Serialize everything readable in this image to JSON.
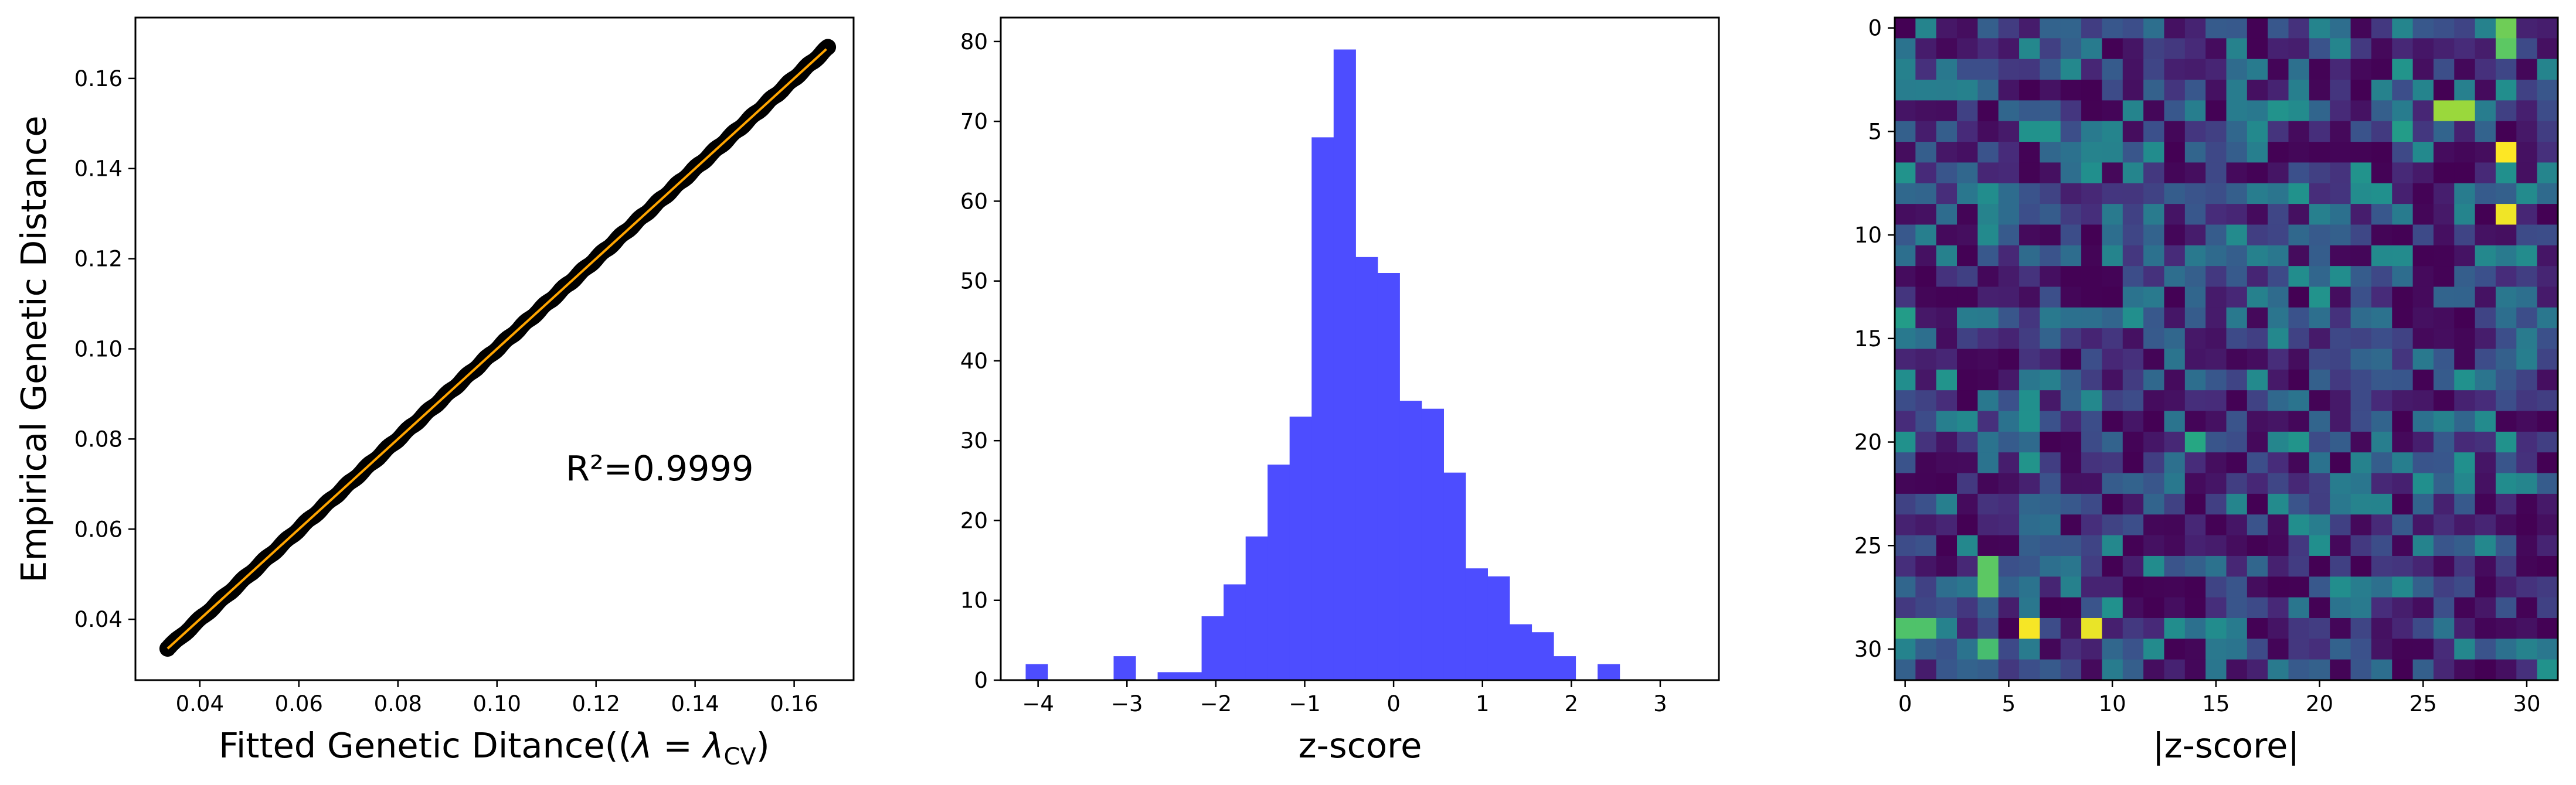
{
  "colors": {
    "scatter_points": "#000000",
    "fit_line": "#ffa500",
    "histogram_bars": "#4d4dff",
    "heatmap_colormap": "viridis"
  },
  "chart_data": [
    {
      "type": "scatter",
      "xlabel": "Fitted Genetic Ditance((λ = λ_CV)",
      "xlabel_parts": {
        "main": "Fitted Genetic Ditance((",
        "lambda1": "λ",
        "eq": " = ",
        "lambda2": "λ",
        "sub": "CV",
        "close": ")"
      },
      "ylabel": "Empirical Genetic Distance",
      "annotation": "R²=0.9999",
      "xlim": [
        0.027,
        0.172
      ],
      "ylim": [
        0.0265,
        0.1735
      ],
      "xticks": [
        "0.04",
        "0.06",
        "0.08",
        "0.10",
        "0.12",
        "0.14",
        "0.16"
      ],
      "yticks": [
        "0.04",
        "0.06",
        "0.08",
        "0.10",
        "0.12",
        "0.14",
        "0.16"
      ],
      "fit_line": {
        "x": [
          0.0335,
          0.1665
        ],
        "y": [
          0.0335,
          0.1665
        ]
      },
      "points_x_range": [
        0.0335,
        0.1668
      ],
      "point_count": 496
    },
    {
      "type": "bar",
      "subtype": "histogram",
      "xlabel": "z-score",
      "ylabel": "",
      "xlim": [
        -4.42,
        3.66
      ],
      "ylim": [
        0,
        83
      ],
      "xticks": [
        "-4",
        "-3",
        "-2",
        "-1",
        "0",
        "1",
        "2",
        "3"
      ],
      "yticks": [
        "0",
        "10",
        "20",
        "30",
        "40",
        "50",
        "60",
        "70",
        "80"
      ],
      "bins_start": -4.14,
      "bin_width": 0.2475,
      "counts": [
        2,
        0,
        0,
        0,
        3,
        0,
        1,
        1,
        8,
        12,
        18,
        27,
        33,
        68,
        79,
        53,
        51,
        35,
        34,
        26,
        14,
        13,
        7,
        6,
        3,
        0,
        2
      ]
    },
    {
      "type": "heatmap",
      "xlabel": "|z-score|",
      "ylabel": "",
      "rows": 32,
      "cols": 32,
      "xticks": [
        "0",
        "5",
        "10",
        "15",
        "20",
        "25",
        "30"
      ],
      "yticks": [
        "0",
        "5",
        "10",
        "15",
        "20",
        "25",
        "30"
      ],
      "vmin": 0,
      "vmax": 1,
      "highlight_cells": [
        {
          "row": 0,
          "col": 29,
          "value": 0.78
        },
        {
          "row": 1,
          "col": 29,
          "value": 0.75
        },
        {
          "row": 4,
          "col": 26,
          "value": 0.85
        },
        {
          "row": 4,
          "col": 27,
          "value": 0.85
        },
        {
          "row": 6,
          "col": 29,
          "value": 1.0
        },
        {
          "row": 9,
          "col": 29,
          "value": 0.98
        },
        {
          "row": 14,
          "col": 0,
          "value": 0.55
        },
        {
          "row": 20,
          "col": 14,
          "value": 0.6
        },
        {
          "row": 26,
          "col": 4,
          "value": 0.75
        },
        {
          "row": 27,
          "col": 4,
          "value": 0.75
        },
        {
          "row": 29,
          "col": 0,
          "value": 0.72
        },
        {
          "row": 29,
          "col": 1,
          "value": 0.72
        },
        {
          "row": 29,
          "col": 6,
          "value": 0.99
        },
        {
          "row": 29,
          "col": 9,
          "value": 0.97
        },
        {
          "row": 29,
          "col": 3,
          "value": 0.1
        },
        {
          "row": 30,
          "col": 4,
          "value": 0.7
        },
        {
          "row": 7,
          "col": 29,
          "value": 0.5
        },
        {
          "row": 5,
          "col": 24,
          "value": 0.55
        },
        {
          "row": 21,
          "col": 27,
          "value": 0.5
        }
      ]
    }
  ]
}
